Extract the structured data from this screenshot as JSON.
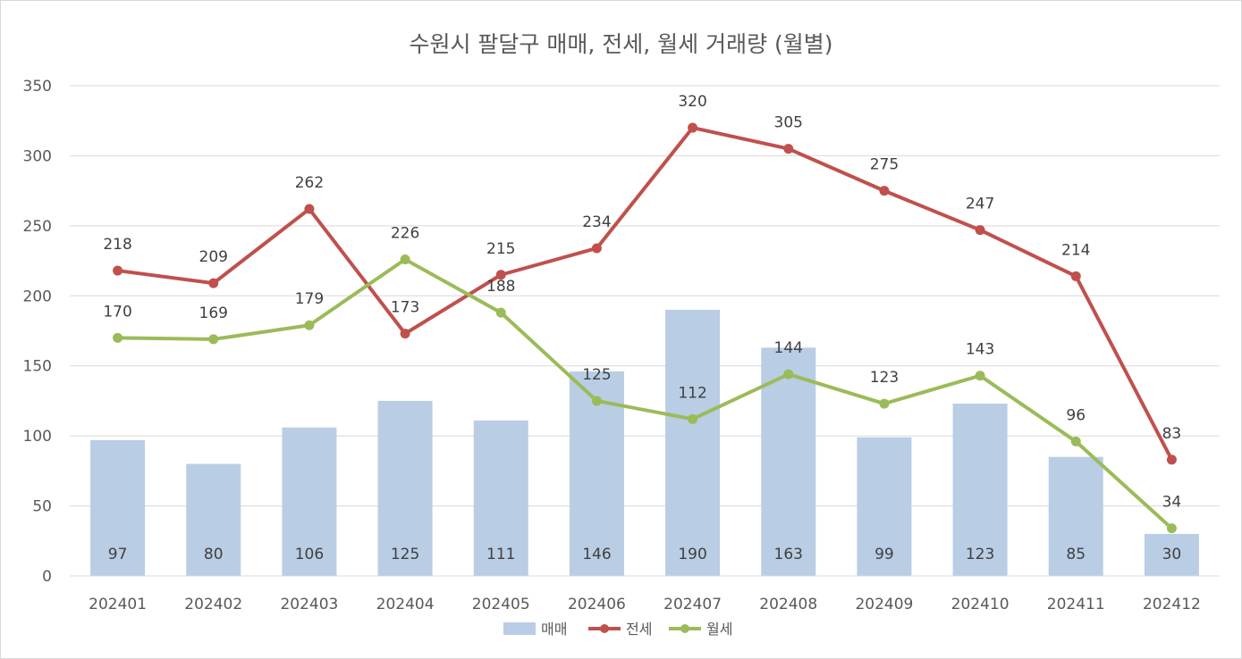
{
  "chart_data": {
    "type": "bar",
    "title": "수원시 팔달구 매매, 전세, 월세 거래량 (월별)",
    "categories": [
      "202401",
      "202402",
      "202403",
      "202404",
      "202405",
      "202406",
      "202407",
      "202408",
      "202409",
      "202410",
      "202411",
      "202412"
    ],
    "series": [
      {
        "name": "매매",
        "type": "bar",
        "color": "#b9cde5",
        "values": [
          97,
          80,
          106,
          125,
          111,
          146,
          190,
          163,
          99,
          123,
          85,
          30
        ]
      },
      {
        "name": "전세",
        "type": "line",
        "color": "#c0504d",
        "values": [
          218,
          209,
          262,
          173,
          215,
          234,
          320,
          305,
          275,
          247,
          214,
          83
        ]
      },
      {
        "name": "월세",
        "type": "line",
        "color": "#9bbb59",
        "values": [
          170,
          169,
          179,
          226,
          188,
          125,
          112,
          144,
          123,
          143,
          96,
          34
        ]
      }
    ],
    "ylim": [
      0,
      350
    ],
    "yticks": [
      0,
      50,
      100,
      150,
      200,
      250,
      300,
      350
    ],
    "grid": true,
    "legend": "bottom"
  }
}
